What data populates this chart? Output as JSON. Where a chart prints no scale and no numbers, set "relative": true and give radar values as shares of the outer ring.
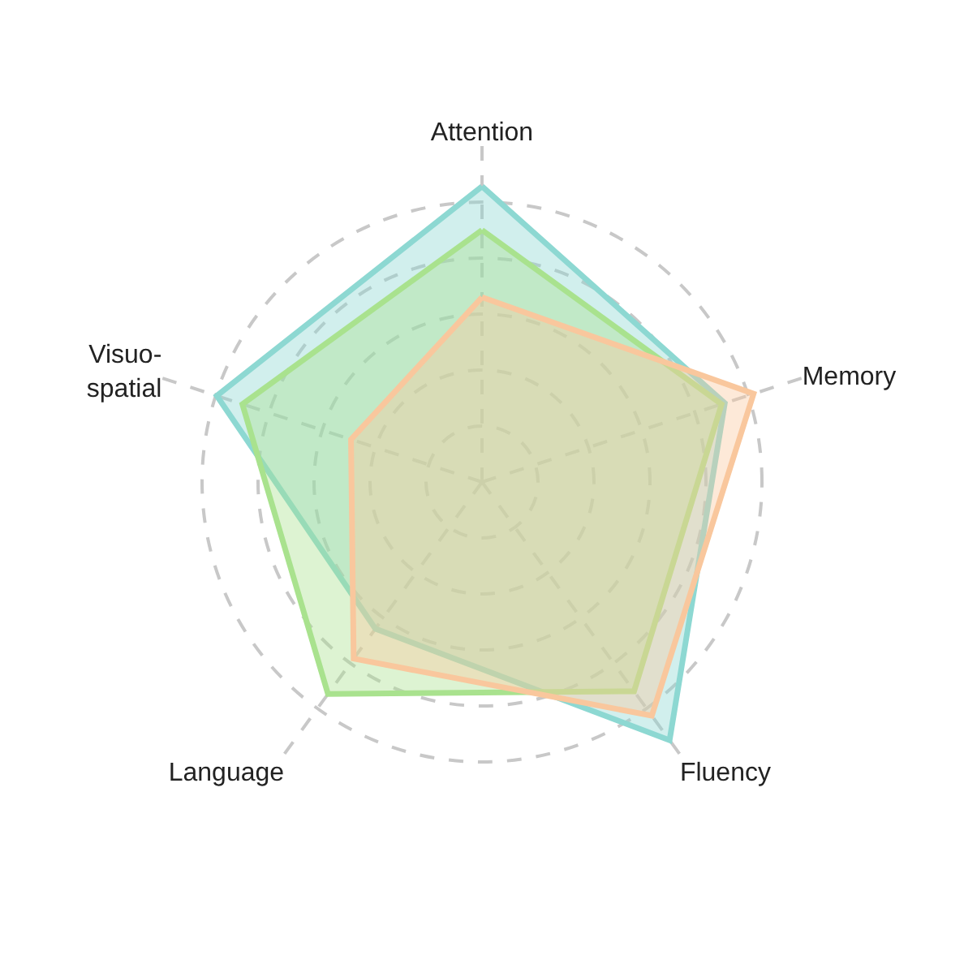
{
  "chart_data": {
    "type": "radar",
    "relative": true,
    "grid": true,
    "marker": "none",
    "line_style": "solid",
    "categories": [
      "Attention",
      "Memory",
      "Fluency",
      "Language",
      "Visuo-\nspatial"
    ],
    "series": [
      {
        "color": "#8dd8d2",
        "values": [
          0.88,
          0.76,
          0.95,
          0.54,
          0.83
        ]
      },
      {
        "color": "#a9e28e",
        "values": [
          0.75,
          0.75,
          0.77,
          0.78,
          0.75
        ]
      },
      {
        "color": "#f9c79d",
        "values": [
          0.55,
          0.85,
          0.86,
          0.65,
          0.41
        ]
      }
    ]
  }
}
